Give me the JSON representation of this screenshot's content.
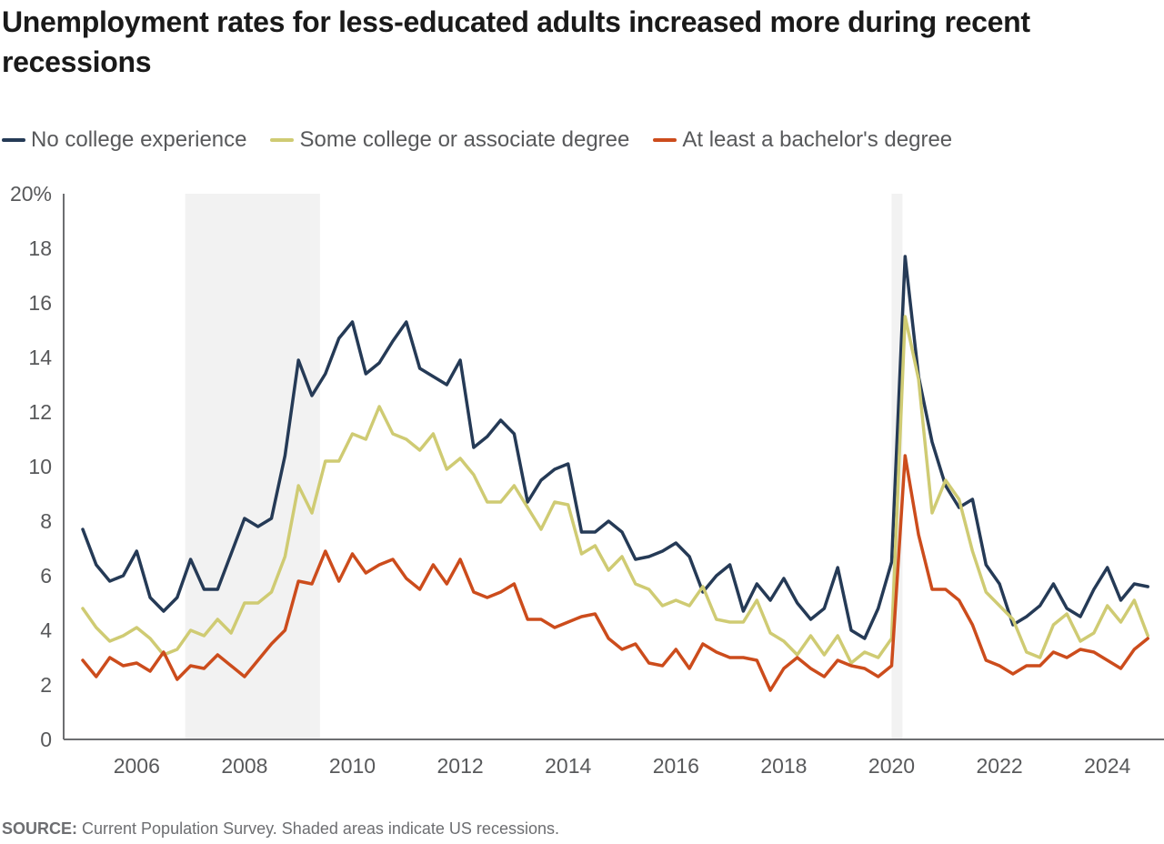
{
  "chart_data": {
    "type": "line",
    "title": "Unemployment rates for less-educated adults increased more during recent recessions",
    "xlabel": "",
    "ylabel": "",
    "ylim": [
      0,
      20
    ],
    "xlim": [
      2005,
      2025
    ],
    "yticks": [
      "0",
      "2",
      "4",
      "6",
      "8",
      "10",
      "12",
      "14",
      "16",
      "18",
      "20%"
    ],
    "xticks": [
      "2006",
      "2008",
      "2010",
      "2012",
      "2014",
      "2016",
      "2018",
      "2020",
      "2022",
      "2024"
    ],
    "grid": false,
    "legend_position": "top-left",
    "recessions": [
      [
        2006.9,
        2009.4
      ],
      [
        2020.0,
        2020.2
      ]
    ],
    "recession_color": "#f2f2f2",
    "x": [
      2005,
      2005.25,
      2005.5,
      2005.75,
      2006,
      2006.25,
      2006.5,
      2006.75,
      2007,
      2007.25,
      2007.5,
      2007.75,
      2008,
      2008.25,
      2008.5,
      2008.75,
      2009,
      2009.25,
      2009.5,
      2009.75,
      2010,
      2010.25,
      2010.5,
      2010.75,
      2011,
      2011.25,
      2011.5,
      2011.75,
      2012,
      2012.25,
      2012.5,
      2012.75,
      2013,
      2013.25,
      2013.5,
      2013.75,
      2014,
      2014.25,
      2014.5,
      2014.75,
      2015,
      2015.25,
      2015.5,
      2015.75,
      2016,
      2016.25,
      2016.5,
      2016.75,
      2017,
      2017.25,
      2017.5,
      2017.75,
      2018,
      2018.25,
      2018.5,
      2018.75,
      2019,
      2019.25,
      2019.5,
      2019.75,
      2020,
      2020.25,
      2020.5,
      2020.75,
      2021,
      2021.25,
      2021.5,
      2021.75,
      2022,
      2022.25,
      2022.5,
      2022.75,
      2023,
      2023.25,
      2023.5,
      2023.75,
      2024,
      2024.25,
      2024.5,
      2024.75
    ],
    "series": [
      {
        "name": "No college experience",
        "color": "#253a56",
        "values": [
          7.7,
          6.4,
          5.8,
          6.0,
          6.9,
          5.2,
          4.7,
          5.2,
          6.6,
          5.5,
          5.5,
          6.8,
          8.1,
          7.8,
          8.1,
          10.4,
          13.9,
          12.6,
          13.4,
          14.7,
          15.3,
          13.4,
          13.8,
          14.6,
          15.3,
          13.6,
          13.3,
          13.0,
          13.9,
          10.7,
          11.1,
          11.7,
          11.2,
          8.7,
          9.5,
          9.9,
          10.1,
          7.6,
          7.6,
          8.0,
          7.6,
          6.6,
          6.7,
          6.9,
          7.2,
          6.7,
          5.4,
          6.0,
          6.4,
          4.7,
          5.7,
          5.1,
          5.9,
          5.0,
          4.4,
          4.8,
          6.3,
          4.0,
          3.7,
          4.8,
          6.5,
          17.7,
          13.3,
          10.9,
          9.3,
          8.5,
          8.8,
          6.4,
          5.7,
          4.2,
          4.5,
          4.9,
          5.7,
          4.8,
          4.5,
          5.5,
          6.3,
          5.1,
          5.7,
          5.6
        ]
      },
      {
        "name": "Some college or associate degree",
        "color": "#cfcb73",
        "values": [
          4.8,
          4.1,
          3.6,
          3.8,
          4.1,
          3.7,
          3.1,
          3.3,
          4.0,
          3.8,
          4.4,
          3.9,
          5.0,
          5.0,
          5.4,
          6.7,
          9.3,
          8.3,
          10.2,
          10.2,
          11.2,
          11.0,
          12.2,
          11.2,
          11.0,
          10.6,
          11.2,
          9.9,
          10.3,
          9.7,
          8.7,
          8.7,
          9.3,
          8.5,
          7.7,
          8.7,
          8.6,
          6.8,
          7.1,
          6.2,
          6.7,
          5.7,
          5.5,
          4.9,
          5.1,
          4.9,
          5.6,
          4.4,
          4.3,
          4.3,
          5.1,
          3.9,
          3.6,
          3.1,
          3.8,
          3.1,
          3.8,
          2.8,
          3.2,
          3.0,
          3.7,
          15.5,
          13.2,
          8.3,
          9.5,
          8.8,
          6.9,
          5.4,
          4.9,
          4.4,
          3.2,
          3.0,
          4.2,
          4.6,
          3.6,
          3.9,
          4.9,
          4.3,
          5.1,
          3.8
        ]
      },
      {
        "name": "At least a bachelor's degree",
        "color": "#cc4c1c",
        "values": [
          2.9,
          2.3,
          3.0,
          2.7,
          2.8,
          2.5,
          3.2,
          2.2,
          2.7,
          2.6,
          3.1,
          2.7,
          2.3,
          2.9,
          3.5,
          4.0,
          5.8,
          5.7,
          6.9,
          5.8,
          6.8,
          6.1,
          6.4,
          6.6,
          5.9,
          5.5,
          6.4,
          5.7,
          6.6,
          5.4,
          5.2,
          5.4,
          5.7,
          4.4,
          4.4,
          4.1,
          4.3,
          4.5,
          4.6,
          3.7,
          3.3,
          3.5,
          2.8,
          2.7,
          3.3,
          2.6,
          3.5,
          3.2,
          3.0,
          3.0,
          2.9,
          1.8,
          2.6,
          3.0,
          2.6,
          2.3,
          2.9,
          2.7,
          2.6,
          2.3,
          2.7,
          10.4,
          7.5,
          5.5,
          5.5,
          5.1,
          4.2,
          2.9,
          2.7,
          2.4,
          2.7,
          2.7,
          3.2,
          3.0,
          3.3,
          3.2,
          2.9,
          2.6,
          3.3,
          3.7
        ]
      }
    ]
  },
  "source": {
    "label": "SOURCE:",
    "text": " Current Population Survey. Shaded areas indicate US recessions."
  }
}
